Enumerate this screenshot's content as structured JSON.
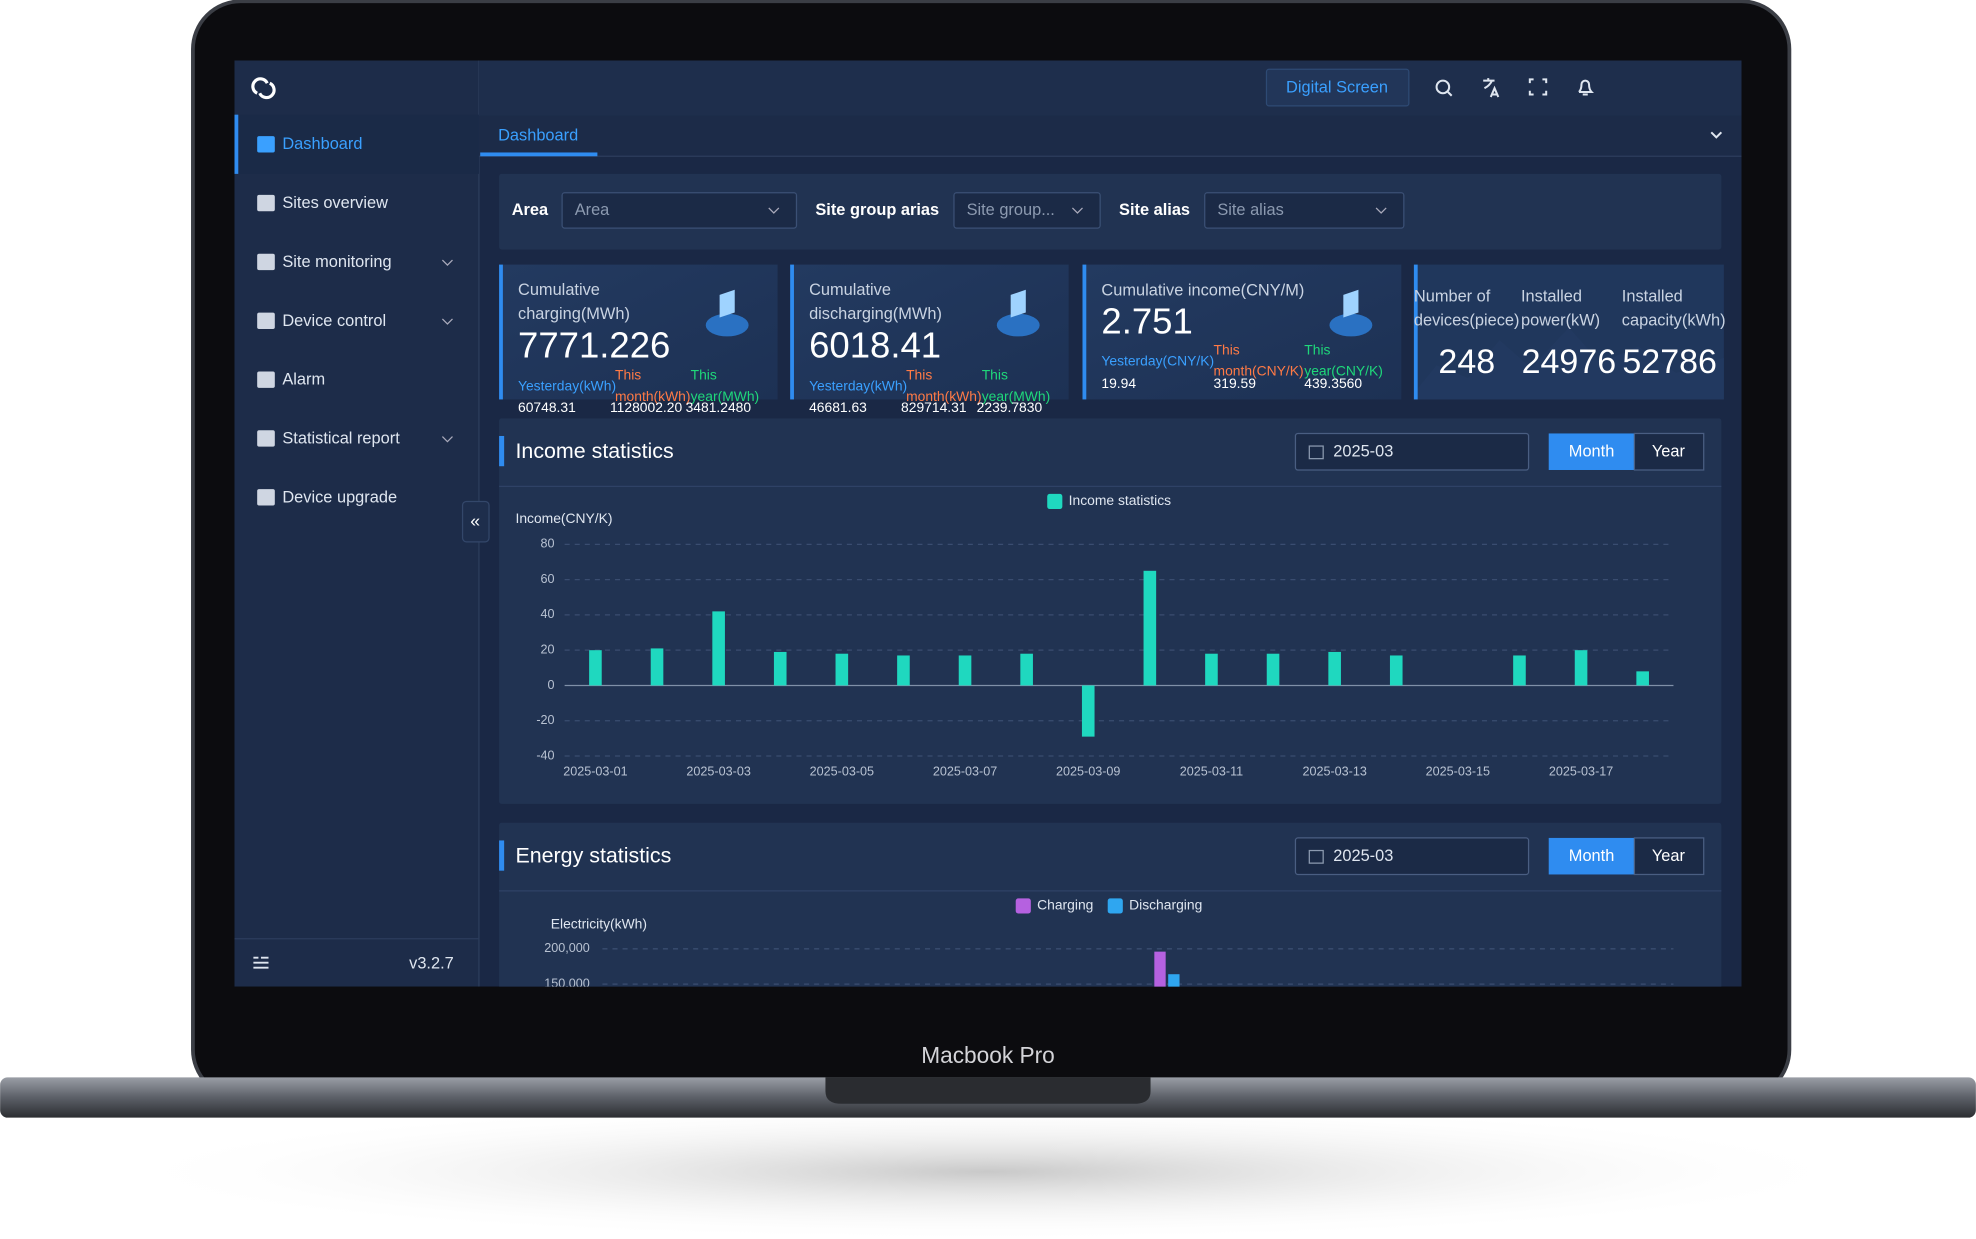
{
  "device_label": "Macbook Pro",
  "header": {
    "digital_screen": "Digital Screen",
    "tab": "Dashboard",
    "version": "v3.2.7"
  },
  "sidebar": {
    "menu": [
      "Dashboard",
      "Sites overview",
      "Site monitoring",
      "Device control",
      "Alarm",
      "Statistical report",
      "Device upgrade"
    ]
  },
  "filters": [
    {
      "label": "Area",
      "placeholder": "Area"
    },
    {
      "label": "Site group arias",
      "placeholder": "Site group..."
    },
    {
      "label": "Site alias",
      "placeholder": "Site alias"
    }
  ],
  "cards": [
    {
      "title": "Cumulative charging(MWh)",
      "value": "7771.226",
      "stats": [
        {
          "label": "Yesterday(kWh)",
          "value": "60748.31"
        },
        {
          "label": "This month(kWh)",
          "value": "1128002.20"
        },
        {
          "label": "This year(MWh)",
          "value": "3481.2480"
        }
      ]
    },
    {
      "title": "Cumulative discharging(MWh)",
      "value": "6018.41",
      "stats": [
        {
          "label": "Yesterday(kWh)",
          "value": "46681.63"
        },
        {
          "label": "This month(kWh)",
          "value": "829714.31"
        },
        {
          "label": "This year(MWh)",
          "value": "2239.7830"
        }
      ]
    },
    {
      "title": "Cumulative income(CNY/M)",
      "value": "2.751",
      "stats": [
        {
          "label": "Yesterday(CNY/K)",
          "value": "19.94"
        },
        {
          "label": "This month(CNY/K)",
          "value": "319.59"
        },
        {
          "label": "This year(CNY/K)",
          "value": "439.3560"
        }
      ]
    }
  ],
  "summary": [
    {
      "label": "Number of devices(piece)",
      "value": "248"
    },
    {
      "label": "Installed power(kW)",
      "value": "24976"
    },
    {
      "label": "Installed capacity(kWh)",
      "value": "52786"
    }
  ],
  "income": {
    "title": "Income statistics",
    "date": "2025-03",
    "buttons": [
      "Month",
      "Year"
    ],
    "chart": {
      "type": "bar",
      "legend": "Income statistics",
      "y_label": "Income(CNY/K)",
      "color": "#1fd8bf",
      "categories": [
        "2025-03-01",
        null,
        "2025-03-03",
        null,
        "2025-03-05",
        null,
        "2025-03-07",
        null,
        "2025-03-09",
        null,
        "2025-03-11",
        null,
        "2025-03-13",
        null,
        "2025-03-15",
        null,
        "2025-03-17",
        null
      ],
      "values": [
        20,
        21,
        42,
        19,
        18,
        17,
        17,
        18,
        -29,
        65,
        18,
        18,
        19,
        17,
        0,
        17,
        20,
        8
      ],
      "ylim": [
        -40,
        80
      ],
      "yticks": [
        -40,
        -20,
        0,
        20,
        40,
        60,
        80
      ],
      "grid": true
    }
  },
  "energy": {
    "title": "Energy statistics",
    "date": "2025-03",
    "buttons": [
      "Month",
      "Year"
    ],
    "chart": {
      "type": "bar",
      "y_label": "Electricity(kWh)",
      "categories": [
        null
      ],
      "series": [
        {
          "name": "Charging",
          "color": "#b561e0",
          "values": [
            196000
          ]
        },
        {
          "name": "Discharging",
          "color": "#2fa6f0",
          "values": [
            164000
          ]
        }
      ],
      "ylim": [
        100000,
        200000
      ],
      "yticks": [
        {
          "value": 150000,
          "label": "150,000"
        },
        {
          "value": 200000,
          "label": "200,000"
        }
      ]
    }
  }
}
